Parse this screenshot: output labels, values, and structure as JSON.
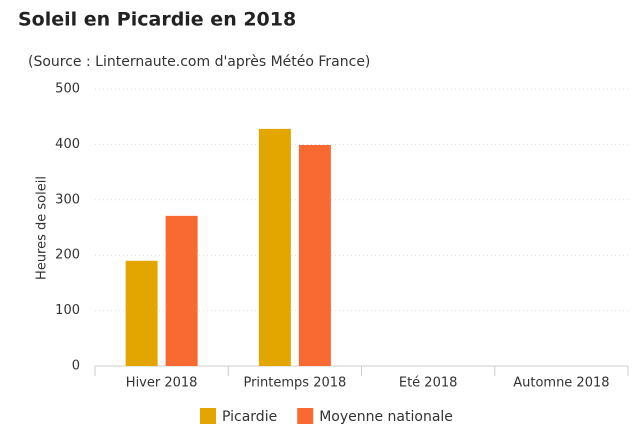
{
  "chart_data": {
    "type": "bar",
    "title": "Soleil en Picardie en 2018",
    "subtitle": "(Source : Linternaute.com d'après Météo France)",
    "y_label": "Heures de soleil",
    "categories": [
      "Hiver 2018",
      "Printemps 2018",
      "Eté 2018",
      "Automne 2018"
    ],
    "series": [
      {
        "name": "Picardie",
        "color": "#e3a600",
        "values": [
          190,
          428,
          null,
          null
        ]
      },
      {
        "name": "Moyenne nationale",
        "color": "#f96932",
        "values": [
          271,
          399,
          null,
          null
        ]
      }
    ],
    "ylim": [
      0,
      500
    ],
    "yticks": [
      0,
      100,
      200,
      300,
      400,
      500
    ],
    "grid": true
  }
}
